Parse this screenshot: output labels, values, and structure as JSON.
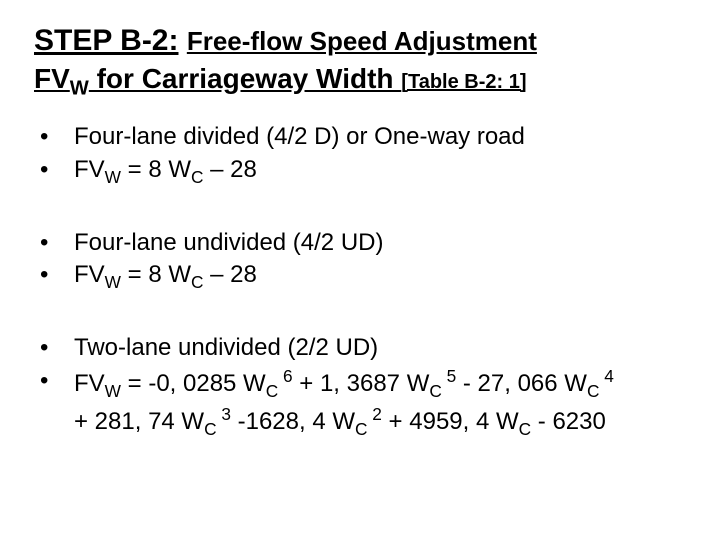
{
  "title": {
    "step_label": "STEP B-2:",
    "subtitle": "Free-flow Speed Adjustment",
    "fvw_pre": "FV",
    "fvw_sub": "W",
    "fvw_post": " for Carriageway Width ",
    "tableref": "[Table B-2: 1]"
  },
  "bullets": {
    "group1": {
      "line1": "Four-lane divided (4/2 D) or One-way road",
      "line2_pre": "FV",
      "line2_sub1": "W",
      "line2_mid": " = 8 W",
      "line2_sub2": "C",
      "line2_post": " – 28"
    },
    "group2": {
      "line1": "Four-lane undivided (4/2 UD)",
      "line2_pre": "FV",
      "line2_sub1": "W",
      "line2_mid": " = 8 W",
      "line2_sub2": "C",
      "line2_post": " – 28"
    },
    "group3": {
      "line1": "Two-lane undivided (2/2 UD)",
      "l2_a": "FV",
      "l2_subW": "W",
      "l2_b": " = -0, 0285 W",
      "l2_subC1": "C",
      "l2_sp6": " 6",
      "l2_c": " + 1, 3687 W",
      "l2_subC2": "C",
      "l2_sp5": " 5",
      "l2_d": " - 27, 066 W",
      "l2_subC3": "C",
      "l2_sp4": " 4",
      "l2_e": "+ 281, 74 W",
      "l2_subC4": "C",
      "l2_sp3": " 3",
      "l2_f": " -1628, 4 W",
      "l2_subC5": "C",
      "l2_sp2": " 2",
      "l2_g": " + 4959, 4 W",
      "l2_subC6": "C",
      "l2_h": " - 6230"
    }
  },
  "style": {
    "text_color": "#000000",
    "background_color": "#ffffff",
    "title_fontsize_main": 30,
    "title_fontsize_sub": 26,
    "title_fontsize_fvw": 28,
    "title_fontsize_tableref": 20,
    "bullet_fontsize": 24,
    "font_family": "Arial"
  }
}
